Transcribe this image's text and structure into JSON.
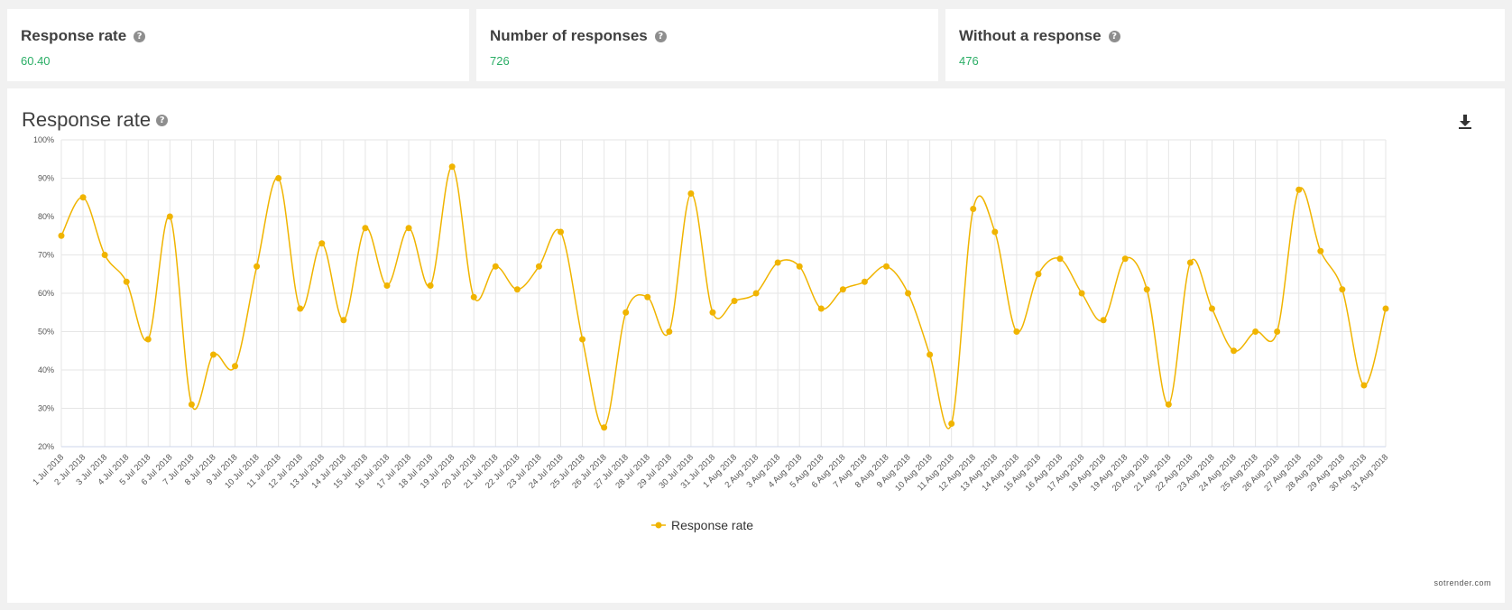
{
  "kpis": [
    {
      "title": "Response rate",
      "value": "60.40"
    },
    {
      "title": "Number of responses",
      "value": "726"
    },
    {
      "title": "Without a response",
      "value": "476"
    }
  ],
  "panel": {
    "title": "Response rate",
    "watermark": "sotrender.com"
  },
  "icons": {
    "help": "question-circle-icon",
    "download": "download-icon"
  },
  "colors": {
    "series": "#f0b400",
    "kpi_value": "#2bae66"
  },
  "chart_data": {
    "type": "line",
    "title": "Response rate",
    "ylim": [
      20,
      100
    ],
    "yticks": [
      "20%",
      "30%",
      "40%",
      "50%",
      "60%",
      "70%",
      "80%",
      "90%",
      "100%"
    ],
    "grid": true,
    "legend_position": "bottom-center",
    "categories": [
      "1 Jul 2018",
      "2 Jul 2018",
      "3 Jul 2018",
      "4 Jul 2018",
      "5 Jul 2018",
      "6 Jul 2018",
      "7 Jul 2018",
      "8 Jul 2018",
      "9 Jul 2018",
      "10 Jul 2018",
      "11 Jul 2018",
      "12 Jul 2018",
      "13 Jul 2018",
      "14 Jul 2018",
      "15 Jul 2018",
      "16 Jul 2018",
      "17 Jul 2018",
      "18 Jul 2018",
      "19 Jul 2018",
      "20 Jul 2018",
      "21 Jul 2018",
      "22 Jul 2018",
      "23 Jul 2018",
      "24 Jul 2018",
      "25 Jul 2018",
      "26 Jul 2018",
      "27 Jul 2018",
      "28 Jul 2018",
      "29 Jul 2018",
      "30 Jul 2018",
      "31 Jul 2018",
      "1 Aug 2018",
      "2 Aug 2018",
      "3 Aug 2018",
      "4 Aug 2018",
      "5 Aug 2018",
      "6 Aug 2018",
      "7 Aug 2018",
      "8 Aug 2018",
      "9 Aug 2018",
      "10 Aug 2018",
      "11 Aug 2018",
      "12 Aug 2018",
      "13 Aug 2018",
      "14 Aug 2018",
      "15 Aug 2018",
      "16 Aug 2018",
      "17 Aug 2018",
      "18 Aug 2018",
      "19 Aug 2018",
      "20 Aug 2018",
      "21 Aug 2018",
      "22 Aug 2018",
      "23 Aug 2018",
      "24 Aug 2018",
      "25 Aug 2018",
      "26 Aug 2018",
      "27 Aug 2018",
      "28 Aug 2018",
      "29 Aug 2018",
      "30 Aug 2018",
      "31 Aug 2018"
    ],
    "series": [
      {
        "name": "Response rate",
        "values": [
          75,
          85,
          70,
          63,
          48,
          80,
          31,
          44,
          41,
          67,
          90,
          56,
          73,
          53,
          77,
          62,
          77,
          62,
          93,
          59,
          67,
          61,
          67,
          76,
          48,
          25,
          55,
          59,
          50,
          86,
          55,
          58,
          60,
          68,
          67,
          56,
          61,
          63,
          67,
          60,
          44,
          26,
          82,
          76,
          50,
          65,
          69,
          60,
          53,
          69,
          61,
          31,
          68,
          56,
          45,
          50,
          50,
          87,
          71,
          61,
          36,
          56
        ]
      }
    ]
  }
}
